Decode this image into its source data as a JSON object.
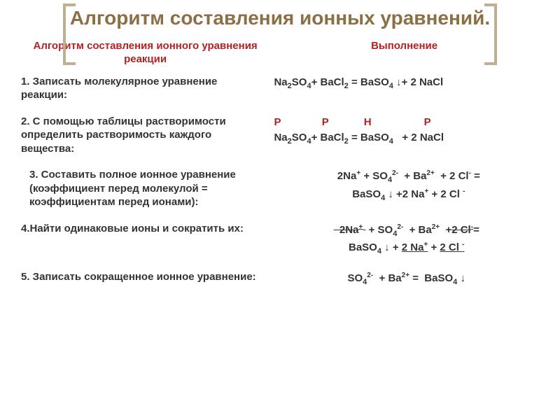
{
  "title": "Алгоритм составления ионных уравнений.",
  "columns": {
    "left": "Алгоритм составления ионного уравнения реакции",
    "right": "Выполнение"
  },
  "steps": [
    {
      "text": "1. Записать молекулярное уравнение реакции:",
      "exec_html": "Na<sub>2</sub>SO<sub>4</sub>+  BaCl<sub>2</sub> = BaSO<sub>4</sub> ↓+ 2 NaCl"
    },
    {
      "text": "2. С помощью таблицы растворимости определить растворимость каждого вещества:",
      "exec_html": "<span class='solub'>Р&nbsp;&nbsp;&nbsp;&nbsp;&nbsp;&nbsp;&nbsp;&nbsp;&nbsp;&nbsp;&nbsp;&nbsp;&nbsp;&nbsp;Р&nbsp;&nbsp;&nbsp;&nbsp;&nbsp;&nbsp;&nbsp;&nbsp;&nbsp;&nbsp;&nbsp;&nbsp;Н&nbsp;&nbsp;&nbsp;&nbsp;&nbsp;&nbsp;&nbsp;&nbsp;&nbsp;&nbsp;&nbsp;&nbsp;&nbsp;&nbsp;&nbsp;&nbsp;&nbsp;&nbsp;Р</span><br>Na<sub>2</sub>SO<sub>4</sub>+ BaCl<sub>2</sub> = BaSO<sub>4</sub>&nbsp;&nbsp;&nbsp;+ 2 NaCl"
    },
    {
      "text": "3. Составить полное ионное уравнение (коэффициент перед молекулой = коэффициентам перед ионами):",
      "exec_html": "2Na<sup>+</sup> + SO<sub>4</sub><sup>2-</sup>&nbsp; + Ba<sup>2+</sup>&nbsp; + 2 Cl<sup>-</sup> =<br>BaSO<sub>4</sub> ↓ +2 Na<sup>+</sup> + 2 Cl <sup>-</sup>",
      "indent": true,
      "center": true
    },
    {
      "text": "4.Найти одинаковые ионы и сократить их:",
      "exec_html": "<span class='strike'>&nbsp;&nbsp;2Na<sup>+</sup>&nbsp;</span> + SO<sub>4</sub><sup>2-</sup>&nbsp; + Ba<sup>2+</sup>&nbsp; +<span class='strike'>2 Cl<sup>-</sup></span>=<br>BaSO<sub>4</sub> ↓ + <span class='uline'>2 Na<sup>+</sup></span> + <span class='uline'>2 Cl <sup>-</sup></span>",
      "center": true
    },
    {
      "text": "5. Записать сокращенное ионное уравнение:",
      "exec_html": "SO<sub>4</sub><sup>2-</sup>&nbsp; + Ba<sup>2+</sup> =&nbsp; BaSO<sub>4</sub> ↓",
      "center": true
    }
  ],
  "colors": {
    "title": "#8B6F47",
    "bracket": "#c0b090",
    "header": "#B22222",
    "text": "#333333",
    "solubility": "#B22222",
    "background": "#ffffff"
  },
  "fonts": {
    "title_size": 28,
    "header_size": 15,
    "body_size": 15
  }
}
